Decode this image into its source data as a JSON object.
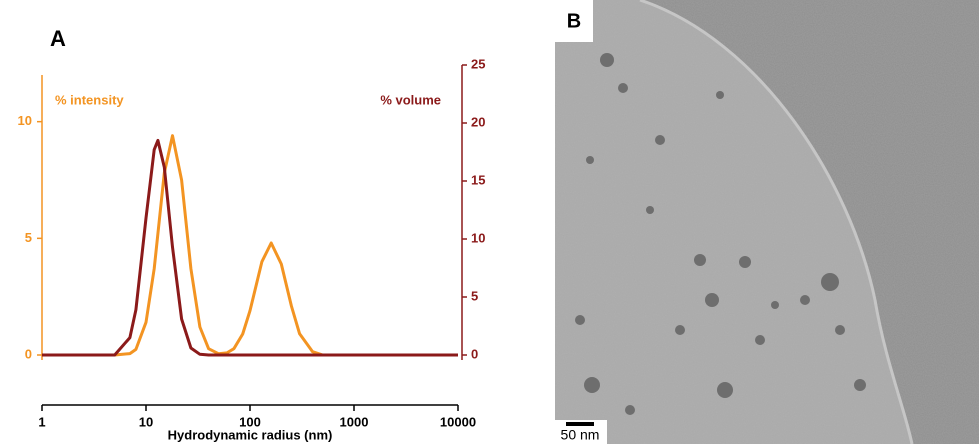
{
  "chart_data": {
    "type": "line",
    "panel_label": "A",
    "x_label": "Hydrodynamic radius (nm)",
    "x_log": true,
    "x": [
      1,
      5,
      7,
      8,
      10,
      12,
      13,
      15,
      18,
      22,
      27,
      33,
      40,
      50,
      60,
      70,
      85,
      100,
      130,
      160,
      200,
      250,
      300,
      400,
      500,
      1000,
      10000
    ],
    "series": [
      {
        "name": "% intensity",
        "color": "#f39422",
        "axis": "y",
        "values": [
          0,
          0,
          0.06,
          0.24,
          1.4,
          3.7,
          5.2,
          7.8,
          9.4,
          7.5,
          3.7,
          1.2,
          0.27,
          0.05,
          0.09,
          0.27,
          0.9,
          1.9,
          4.0,
          4.8,
          3.9,
          2.1,
          0.91,
          0.14,
          0,
          0,
          0
        ]
      },
      {
        "name": "% volume",
        "color": "#8b1a1a",
        "axis": "y2",
        "values": [
          0,
          0,
          1.5,
          3.9,
          11.8,
          17.7,
          18.5,
          16.2,
          9.3,
          3.1,
          0.6,
          0.06,
          0,
          0,
          0,
          0,
          0,
          0,
          0,
          0,
          0,
          0,
          0,
          0,
          0,
          0,
          0
        ]
      }
    ],
    "xlim": [
      1,
      10000
    ],
    "xticks": [
      1,
      10,
      100,
      1000,
      10000
    ],
    "ylim": [
      0,
      12
    ],
    "yticks": [
      0,
      5,
      10
    ],
    "y2lim": [
      0,
      25
    ],
    "y2ticks": [
      0,
      5,
      10,
      15,
      20,
      25
    ]
  },
  "image": {
    "panel_label": "B",
    "scale_bar": "50 nm"
  }
}
